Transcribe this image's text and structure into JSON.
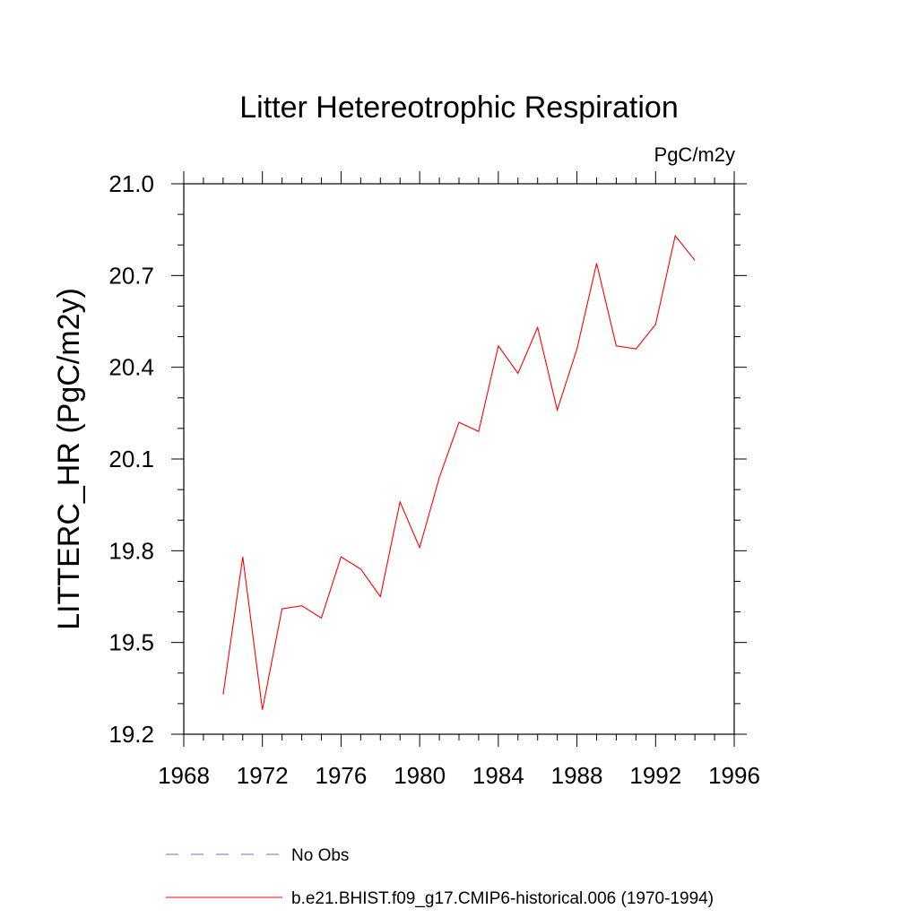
{
  "chart_data": {
    "type": "line",
    "title": "Litter Hetereotrophic Respiration",
    "units_label": "PgC/m2y",
    "ylabel": "LITTERC_HR  (PgC/m2y)",
    "xlabel": "",
    "xlim": [
      1968,
      1996
    ],
    "ylim": [
      19.2,
      21.0
    ],
    "x_ticks": [
      1968,
      1972,
      1976,
      1980,
      1984,
      1988,
      1992,
      1996
    ],
    "x_tick_labels": [
      "1968",
      "1972",
      "1976",
      "1980",
      "1984",
      "1988",
      "1992",
      "1996"
    ],
    "y_ticks": [
      19.2,
      19.5,
      19.8,
      20.1,
      20.4,
      20.7,
      21.0
    ],
    "y_tick_labels": [
      "19.2",
      "19.5",
      "19.8",
      "20.1",
      "20.4",
      "20.7",
      "21.0"
    ],
    "grid": false,
    "legend_position": "bottom",
    "series": [
      {
        "name": "No Obs",
        "color": "#6b6bd6",
        "dashed": true,
        "x": [],
        "values": []
      },
      {
        "name": "b.e21.BHIST.f09_g17.CMIP6-historical.006 (1970-1994)",
        "color": "#ff0000",
        "dashed": false,
        "x": [
          1970,
          1971,
          1972,
          1973,
          1974,
          1975,
          1976,
          1977,
          1978,
          1979,
          1980,
          1981,
          1982,
          1983,
          1984,
          1985,
          1986,
          1987,
          1988,
          1989,
          1990,
          1991,
          1992,
          1993,
          1994
        ],
        "values": [
          19.33,
          19.78,
          19.28,
          19.61,
          19.62,
          19.58,
          19.78,
          19.74,
          19.65,
          19.96,
          19.81,
          20.04,
          20.22,
          20.19,
          20.47,
          20.38,
          20.53,
          20.26,
          20.46,
          20.74,
          20.47,
          20.46,
          20.54,
          20.83,
          20.75
        ]
      }
    ]
  }
}
